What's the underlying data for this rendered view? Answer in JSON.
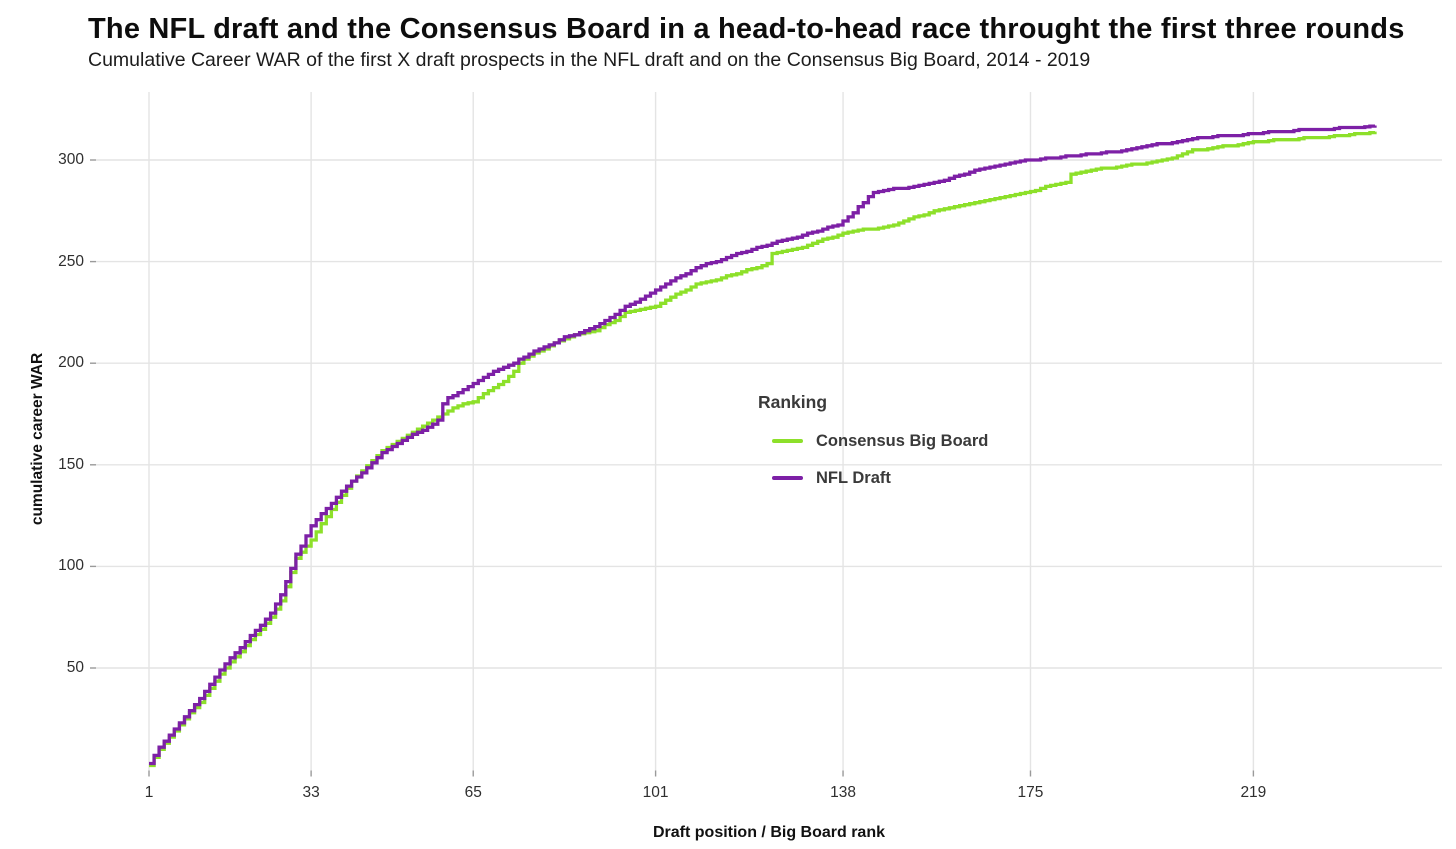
{
  "header": {
    "title": "The NFL draft and the Consensus Board in a head-to-head race throught the first three rounds",
    "subtitle": "Cumulative Career WAR of the first X draft prospects in the NFL draft and on the Consensus Big Board, 2014 - 2019"
  },
  "chart_data": {
    "type": "line",
    "subtype": "step",
    "xlabel": "Draft position / Big Board rank",
    "ylabel": "cumulative career WAR",
    "x_ticks": [
      1,
      33,
      65,
      101,
      138,
      175,
      219
    ],
    "y_ticks": [
      50,
      100,
      150,
      200,
      250,
      300
    ],
    "xlim": [
      1,
      243
    ],
    "ylim": [
      0,
      333
    ],
    "grid": true,
    "gridline_color": "#e4e4e4",
    "tick_color": "#9a9a9a",
    "legend": {
      "title": "Ranking",
      "position": "inside-center-right"
    },
    "series": [
      {
        "name": "Consensus Big Board",
        "color": "#8DE02A",
        "points": [
          [
            1,
            2
          ],
          [
            2,
            6
          ],
          [
            3,
            10
          ],
          [
            5,
            16
          ],
          [
            7,
            22
          ],
          [
            9,
            28
          ],
          [
            11,
            33
          ],
          [
            13,
            40
          ],
          [
            15,
            47
          ],
          [
            17,
            53
          ],
          [
            19,
            58
          ],
          [
            21,
            64
          ],
          [
            23,
            69
          ],
          [
            25,
            75
          ],
          [
            27,
            83
          ],
          [
            29,
            97
          ],
          [
            30,
            104
          ],
          [
            31,
            107
          ],
          [
            33,
            113
          ],
          [
            35,
            121
          ],
          [
            37,
            128
          ],
          [
            39,
            135
          ],
          [
            41,
            142
          ],
          [
            43,
            147
          ],
          [
            45,
            152
          ],
          [
            47,
            157
          ],
          [
            49,
            160
          ],
          [
            51,
            163
          ],
          [
            53,
            166
          ],
          [
            55,
            169
          ],
          [
            57,
            172
          ],
          [
            59,
            175
          ],
          [
            61,
            178
          ],
          [
            63,
            180
          ],
          [
            65,
            181
          ],
          [
            67,
            185
          ],
          [
            69,
            188
          ],
          [
            71,
            191
          ],
          [
            73,
            196
          ],
          [
            74,
            200
          ],
          [
            75,
            202
          ],
          [
            77,
            205
          ],
          [
            79,
            207
          ],
          [
            81,
            210
          ],
          [
            83,
            212
          ],
          [
            85,
            214
          ],
          [
            87,
            215
          ],
          [
            89,
            216
          ],
          [
            91,
            219
          ],
          [
            93,
            221
          ],
          [
            95,
            225
          ],
          [
            97,
            226
          ],
          [
            99,
            227
          ],
          [
            101,
            228
          ],
          [
            103,
            231
          ],
          [
            105,
            234
          ],
          [
            107,
            236
          ],
          [
            109,
            239
          ],
          [
            111,
            240
          ],
          [
            113,
            241
          ],
          [
            115,
            243
          ],
          [
            117,
            244
          ],
          [
            119,
            246
          ],
          [
            121,
            247
          ],
          [
            123,
            249
          ],
          [
            124,
            254
          ],
          [
            126,
            255
          ],
          [
            128,
            256
          ],
          [
            130,
            257
          ],
          [
            132,
            259
          ],
          [
            134,
            261
          ],
          [
            136,
            262
          ],
          [
            138,
            264
          ],
          [
            140,
            265
          ],
          [
            142,
            266
          ],
          [
            144,
            266
          ],
          [
            146,
            267
          ],
          [
            148,
            268
          ],
          [
            150,
            270
          ],
          [
            152,
            272
          ],
          [
            154,
            273
          ],
          [
            156,
            275
          ],
          [
            158,
            276
          ],
          [
            160,
            277
          ],
          [
            162,
            278
          ],
          [
            164,
            279
          ],
          [
            166,
            280
          ],
          [
            168,
            281
          ],
          [
            170,
            282
          ],
          [
            172,
            283
          ],
          [
            174,
            284
          ],
          [
            176,
            285
          ],
          [
            178,
            287
          ],
          [
            180,
            288
          ],
          [
            182,
            289
          ],
          [
            183,
            293
          ],
          [
            185,
            294
          ],
          [
            187,
            295
          ],
          [
            189,
            296
          ],
          [
            191,
            296
          ],
          [
            193,
            297
          ],
          [
            195,
            298
          ],
          [
            197,
            298
          ],
          [
            199,
            299
          ],
          [
            201,
            300
          ],
          [
            203,
            301
          ],
          [
            205,
            303
          ],
          [
            207,
            305
          ],
          [
            209,
            305
          ],
          [
            211,
            306
          ],
          [
            213,
            307
          ],
          [
            215,
            307
          ],
          [
            217,
            308
          ],
          [
            219,
            309
          ],
          [
            221,
            309
          ],
          [
            223,
            310
          ],
          [
            225,
            310
          ],
          [
            227,
            310
          ],
          [
            229,
            311
          ],
          [
            231,
            311
          ],
          [
            233,
            311
          ],
          [
            235,
            312
          ],
          [
            237,
            312
          ],
          [
            239,
            313
          ],
          [
            241,
            313
          ],
          [
            243,
            314
          ]
        ]
      },
      {
        "name": "NFL Draft",
        "color": "#7D20A6",
        "points": [
          [
            1,
            3
          ],
          [
            2,
            7
          ],
          [
            3,
            11
          ],
          [
            5,
            17
          ],
          [
            7,
            23
          ],
          [
            9,
            29
          ],
          [
            11,
            35
          ],
          [
            13,
            42
          ],
          [
            15,
            49
          ],
          [
            17,
            55
          ],
          [
            19,
            60
          ],
          [
            21,
            66
          ],
          [
            23,
            71
          ],
          [
            25,
            77
          ],
          [
            27,
            86
          ],
          [
            29,
            99
          ],
          [
            30,
            106
          ],
          [
            31,
            110
          ],
          [
            33,
            120
          ],
          [
            35,
            126
          ],
          [
            37,
            131
          ],
          [
            39,
            137
          ],
          [
            41,
            142
          ],
          [
            43,
            146
          ],
          [
            45,
            151
          ],
          [
            47,
            156
          ],
          [
            49,
            159
          ],
          [
            51,
            162
          ],
          [
            53,
            165
          ],
          [
            55,
            167
          ],
          [
            57,
            170
          ],
          [
            58,
            172
          ],
          [
            59,
            180
          ],
          [
            60,
            183
          ],
          [
            61,
            184
          ],
          [
            63,
            187
          ],
          [
            65,
            190
          ],
          [
            67,
            193
          ],
          [
            69,
            196
          ],
          [
            71,
            198
          ],
          [
            73,
            200
          ],
          [
            74,
            202
          ],
          [
            75,
            203
          ],
          [
            77,
            206
          ],
          [
            79,
            208
          ],
          [
            81,
            210
          ],
          [
            83,
            213
          ],
          [
            85,
            214
          ],
          [
            87,
            216
          ],
          [
            89,
            218
          ],
          [
            91,
            221
          ],
          [
            93,
            224
          ],
          [
            95,
            228
          ],
          [
            97,
            230
          ],
          [
            99,
            233
          ],
          [
            101,
            236
          ],
          [
            103,
            239
          ],
          [
            105,
            242
          ],
          [
            107,
            244
          ],
          [
            109,
            247
          ],
          [
            111,
            249
          ],
          [
            113,
            250
          ],
          [
            115,
            252
          ],
          [
            117,
            254
          ],
          [
            119,
            255
          ],
          [
            121,
            257
          ],
          [
            123,
            258
          ],
          [
            125,
            260
          ],
          [
            127,
            261
          ],
          [
            129,
            262
          ],
          [
            131,
            264
          ],
          [
            133,
            265
          ],
          [
            135,
            267
          ],
          [
            137,
            268
          ],
          [
            139,
            272
          ],
          [
            140,
            274
          ],
          [
            141,
            277
          ],
          [
            142,
            279
          ],
          [
            143,
            282
          ],
          [
            144,
            284
          ],
          [
            146,
            285
          ],
          [
            148,
            286
          ],
          [
            150,
            286
          ],
          [
            152,
            287
          ],
          [
            154,
            288
          ],
          [
            156,
            289
          ],
          [
            158,
            290
          ],
          [
            160,
            292
          ],
          [
            162,
            293
          ],
          [
            164,
            295
          ],
          [
            166,
            296
          ],
          [
            168,
            297
          ],
          [
            170,
            298
          ],
          [
            172,
            299
          ],
          [
            174,
            300
          ],
          [
            176,
            300
          ],
          [
            178,
            301
          ],
          [
            180,
            301
          ],
          [
            182,
            302
          ],
          [
            184,
            302
          ],
          [
            186,
            303
          ],
          [
            188,
            303
          ],
          [
            190,
            304
          ],
          [
            192,
            304
          ],
          [
            194,
            305
          ],
          [
            196,
            306
          ],
          [
            198,
            307
          ],
          [
            200,
            308
          ],
          [
            202,
            308
          ],
          [
            204,
            309
          ],
          [
            206,
            310
          ],
          [
            208,
            311
          ],
          [
            210,
            311
          ],
          [
            212,
            312
          ],
          [
            214,
            312
          ],
          [
            216,
            312
          ],
          [
            218,
            313
          ],
          [
            220,
            313
          ],
          [
            222,
            314
          ],
          [
            224,
            314
          ],
          [
            226,
            314
          ],
          [
            228,
            315
          ],
          [
            230,
            315
          ],
          [
            232,
            315
          ],
          [
            234,
            315
          ],
          [
            236,
            316
          ],
          [
            238,
            316
          ],
          [
            240,
            316
          ],
          [
            243,
            317
          ]
        ]
      }
    ]
  }
}
